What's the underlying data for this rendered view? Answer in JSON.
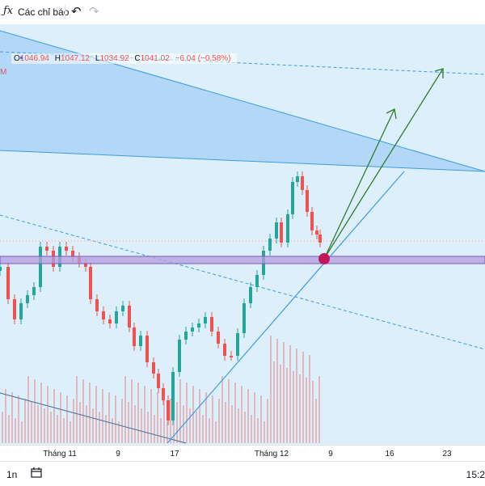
{
  "toolbar": {
    "fx_icon": "fx-icon",
    "indicators_label": "Các chỉ báo",
    "undo_icon": "undo-icon",
    "redo_icon": "redo-icon"
  },
  "legend": {
    "o_label": "O",
    "o_value": "1046.94",
    "h_label": "H",
    "h_value": "1047.12",
    "l_label": "L",
    "l_value": "1034.92",
    "c_label": "C",
    "c_value": "1041.02",
    "change": "−6.04 (−0.58%)",
    "symbol_fragment": "M"
  },
  "xaxis_labels": [
    "Tháng 11",
    "9",
    "17",
    "Tháng 12",
    "9",
    "16",
    "23"
  ],
  "bottombar": {
    "range_label": "1n",
    "calendar_icon": "calendar-icon",
    "time_label": "15:2"
  },
  "colors": {
    "up": "#26a69a",
    "down": "#ef5350",
    "chart_bg": "#dceffa",
    "channel_fill": "#a6cff5",
    "line_blue": "#3d9be0",
    "zone_purple": "#b39ddb",
    "arrow_green": "#2e7d32",
    "marker": "#c2185b"
  },
  "chart_data": {
    "type": "candlestick",
    "x_tick_labels": [
      "Tháng 11",
      "9",
      "17",
      "Tháng 12",
      "9",
      "16",
      "23"
    ],
    "last_bar": {
      "open": 1046.94,
      "high": 1047.12,
      "low": 1034.92,
      "close": 1041.02,
      "change": -6.04,
      "change_pct": -0.58
    },
    "drawings": [
      "descending channel (filled)",
      "horizontal support zone",
      "ascending trend line",
      "dashed trend lines",
      "two upward projection arrows",
      "circle marker at breakout"
    ]
  }
}
